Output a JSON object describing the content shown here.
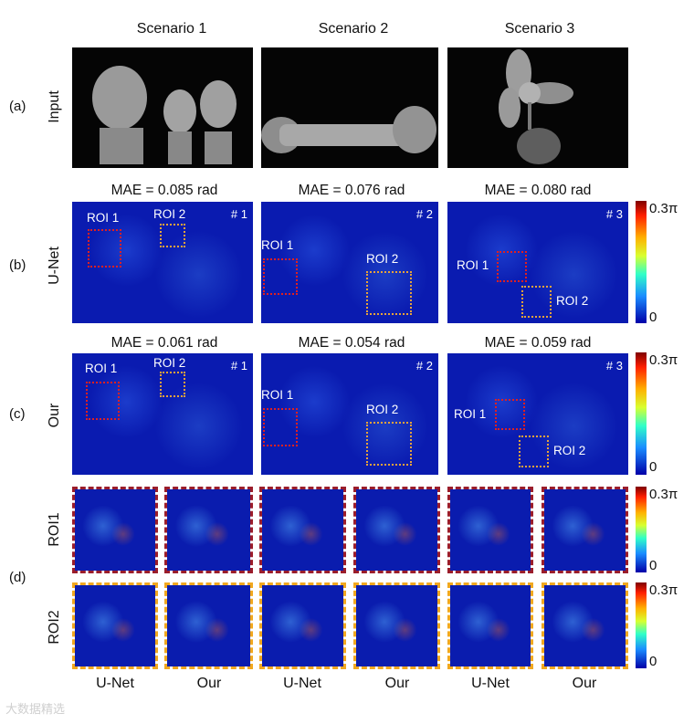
{
  "columns": [
    "Scenario 1",
    "Scenario 2",
    "Scenario 3"
  ],
  "rows": {
    "a": {
      "tag": "(a)",
      "label": "Input"
    },
    "b": {
      "tag": "(b)",
      "label": "U-Net",
      "mae": [
        "MAE = 0.085 rad",
        "MAE = 0.076 rad",
        "MAE = 0.080 rad"
      ]
    },
    "c": {
      "tag": "(c)",
      "label": "Our",
      "mae": [
        "MAE = 0.061 rad",
        "MAE = 0.054 rad",
        "MAE = 0.059 rad"
      ]
    },
    "d": {
      "tag": "(d)",
      "label_roi1": "ROI1",
      "label_roi2": "ROI2"
    }
  },
  "panel_tags": [
    "# 1",
    "# 2",
    "# 3"
  ],
  "roi_labels": {
    "roi1": "ROI 1",
    "roi2": "ROI 2"
  },
  "colorbar": {
    "max": "0.3π",
    "min": "0"
  },
  "bottom_labels": [
    "U-Net",
    "Our",
    "U-Net",
    "Our",
    "U-Net",
    "Our"
  ],
  "watermark": "大数据精选"
}
